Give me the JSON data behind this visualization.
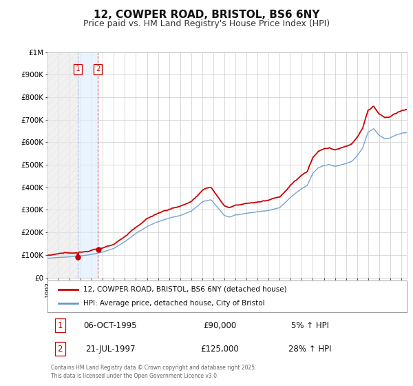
{
  "title": "12, COWPER ROAD, BRISTOL, BS6 6NY",
  "subtitle": "Price paid vs. HM Land Registry's House Price Index (HPI)",
  "title_fontsize": 11,
  "subtitle_fontsize": 9,
  "background_color": "#ffffff",
  "plot_bg_color": "#ffffff",
  "grid_color": "#cccccc",
  "sale1_date_num": 1995.76,
  "sale1_price": 90000,
  "sale1_label": "1",
  "sale2_date_num": 1997.55,
  "sale2_price": 125000,
  "sale2_label": "2",
  "hpi_line_color": "#6699cc",
  "price_line_color": "#cc0000",
  "sale_marker_color": "#cc0000",
  "shade_color": "#ddeeff",
  "hatch_color": "#bbbbbb",
  "xmin": 1993.0,
  "xmax": 2025.5,
  "ymin": 0,
  "ymax": 1000000,
  "legend1": "12, COWPER ROAD, BRISTOL, BS6 6NY (detached house)",
  "legend2": "HPI: Average price, detached house, City of Bristol",
  "table_row1": [
    "1",
    "06-OCT-1995",
    "£90,000",
    "5% ↑ HPI"
  ],
  "table_row2": [
    "2",
    "21-JUL-1997",
    "£125,000",
    "28% ↑ HPI"
  ],
  "footer": "Contains HM Land Registry data © Crown copyright and database right 2025.\nThis data is licensed under the Open Government Licence v3.0.",
  "yticks": [
    0,
    100000,
    200000,
    300000,
    400000,
    500000,
    600000,
    700000,
    800000,
    900000,
    1000000
  ],
  "ytick_labels": [
    "£0",
    "£100K",
    "£200K",
    "£300K",
    "£400K",
    "£500K",
    "£600K",
    "£700K",
    "£800K",
    "£900K",
    "£1M"
  ]
}
